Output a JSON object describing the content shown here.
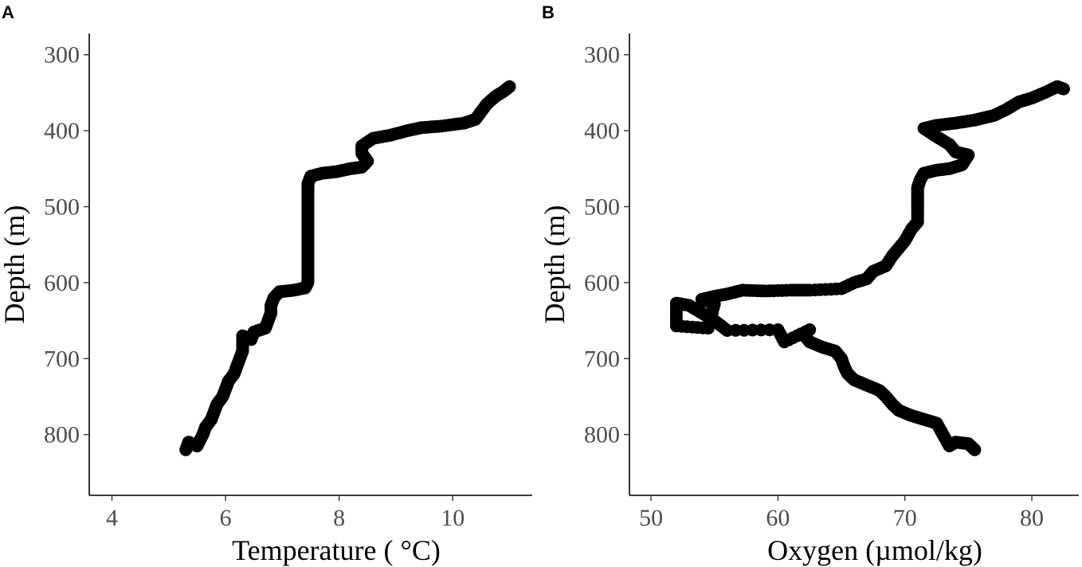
{
  "chart_data": [
    {
      "panel": "A",
      "type": "scatter",
      "xlabel": "Temperature ( °C)",
      "ylabel": "Depth (m)",
      "xlim": [
        3.6,
        11.4
      ],
      "ylim": [
        880,
        272
      ],
      "y_reversed": true,
      "x_ticks": [
        4,
        6,
        8,
        10
      ],
      "y_ticks": [
        300,
        400,
        500,
        600,
        700,
        800
      ],
      "grid": false,
      "series": [
        {
          "color": "#000000",
          "points": [
            [
              5.3,
              820
            ],
            [
              5.35,
              810
            ],
            [
              5.5,
              815
            ],
            [
              5.6,
              800
            ],
            [
              5.65,
              790
            ],
            [
              5.75,
              780
            ],
            [
              5.8,
              770
            ],
            [
              5.85,
              760
            ],
            [
              5.95,
              750
            ],
            [
              6.0,
              740
            ],
            [
              6.05,
              730
            ],
            [
              6.15,
              720
            ],
            [
              6.2,
              710
            ],
            [
              6.25,
              700
            ],
            [
              6.3,
              690
            ],
            [
              6.3,
              680
            ],
            [
              6.3,
              670
            ],
            [
              6.45,
              675
            ],
            [
              6.5,
              665
            ],
            [
              6.7,
              660
            ],
            [
              6.75,
              650
            ],
            [
              6.8,
              640
            ],
            [
              6.8,
              630
            ],
            [
              6.85,
              620
            ],
            [
              6.95,
              612
            ],
            [
              7.2,
              610
            ],
            [
              7.4,
              607
            ],
            [
              7.45,
              600
            ],
            [
              7.45,
              590
            ],
            [
              7.45,
              580
            ],
            [
              7.45,
              570
            ],
            [
              7.45,
              560
            ],
            [
              7.45,
              550
            ],
            [
              7.45,
              540
            ],
            [
              7.45,
              530
            ],
            [
              7.45,
              520
            ],
            [
              7.45,
              510
            ],
            [
              7.45,
              500
            ],
            [
              7.45,
              490
            ],
            [
              7.45,
              480
            ],
            [
              7.45,
              470
            ],
            [
              7.5,
              460
            ],
            [
              7.7,
              456
            ],
            [
              7.95,
              454
            ],
            [
              8.2,
              450
            ],
            [
              8.4,
              448
            ],
            [
              8.5,
              440
            ],
            [
              8.4,
              430
            ],
            [
              8.4,
              420
            ],
            [
              8.6,
              410
            ],
            [
              8.9,
              406
            ],
            [
              9.2,
              400
            ],
            [
              9.45,
              396
            ],
            [
              9.8,
              394
            ],
            [
              10.2,
              390
            ],
            [
              10.4,
              385
            ],
            [
              10.5,
              375
            ],
            [
              10.6,
              365
            ],
            [
              10.75,
              355
            ],
            [
              10.9,
              348
            ],
            [
              11.0,
              342
            ]
          ]
        }
      ]
    },
    {
      "panel": "B",
      "type": "scatter",
      "xlabel": "Oxygen (µmol/kg)",
      "ylabel": "Depth (m)",
      "xlim": [
        48.3,
        83.7
      ],
      "ylim": [
        880,
        272
      ],
      "y_reversed": true,
      "x_ticks": [
        50,
        60,
        70,
        80
      ],
      "y_ticks": [
        300,
        400,
        500,
        600,
        700,
        800
      ],
      "grid": false,
      "series": [
        {
          "color": "#000000",
          "points": [
            [
              75.5,
              820
            ],
            [
              75,
              812
            ],
            [
              74,
              810
            ],
            [
              73.5,
              815
            ],
            [
              73,
              800
            ],
            [
              72.5,
              785
            ],
            [
              71.5,
              780
            ],
            [
              70.5,
              775
            ],
            [
              69.5,
              768
            ],
            [
              69,
              760
            ],
            [
              68.5,
              750
            ],
            [
              68,
              742
            ],
            [
              67,
              735
            ],
            [
              66,
              728
            ],
            [
              65.5,
              720
            ],
            [
              65.2,
              710
            ],
            [
              65,
              700
            ],
            [
              64.5,
              690
            ],
            [
              63.5,
              685
            ],
            [
              62.5,
              678
            ],
            [
              62,
              668
            ],
            [
              62.5,
              662
            ],
            [
              60.5,
              678
            ],
            [
              60,
              662
            ],
            [
              56,
              663
            ],
            [
              55,
              650
            ],
            [
              54,
              640
            ],
            [
              53,
              630
            ],
            [
              52,
              627
            ],
            [
              52,
              657
            ],
            [
              54.5,
              660
            ],
            [
              55,
              628
            ],
            [
              54,
              622
            ],
            [
              55,
              618
            ],
            [
              56,
              615
            ],
            [
              57.2,
              610
            ],
            [
              59,
              611
            ],
            [
              61,
              610
            ],
            [
              62.5,
              610
            ],
            [
              65,
              608
            ],
            [
              66,
              600
            ],
            [
              67,
              595
            ],
            [
              67.5,
              585
            ],
            [
              68.5,
              578
            ],
            [
              69,
              565
            ],
            [
              69.5,
              555
            ],
            [
              70,
              545
            ],
            [
              70.5,
              530
            ],
            [
              71,
              520
            ],
            [
              71,
              505
            ],
            [
              71,
              495
            ],
            [
              71,
              485
            ],
            [
              71,
              475
            ],
            [
              71.2,
              465
            ],
            [
              71.5,
              456
            ],
            [
              72.5,
              452
            ],
            [
              73.5,
              450
            ],
            [
              74.5,
              445
            ],
            [
              75,
              432
            ],
            [
              74,
              428
            ],
            [
              73.5,
              418
            ],
            [
              72.5,
              408
            ],
            [
              71.5,
              397
            ],
            [
              72.5,
              393
            ],
            [
              74,
              390
            ],
            [
              75.5,
              386
            ],
            [
              77,
              380
            ],
            [
              78,
              372
            ],
            [
              79,
              362
            ],
            [
              80,
              357
            ],
            [
              81,
              350
            ],
            [
              82,
              342
            ],
            [
              82.5,
              345
            ]
          ]
        }
      ]
    }
  ]
}
